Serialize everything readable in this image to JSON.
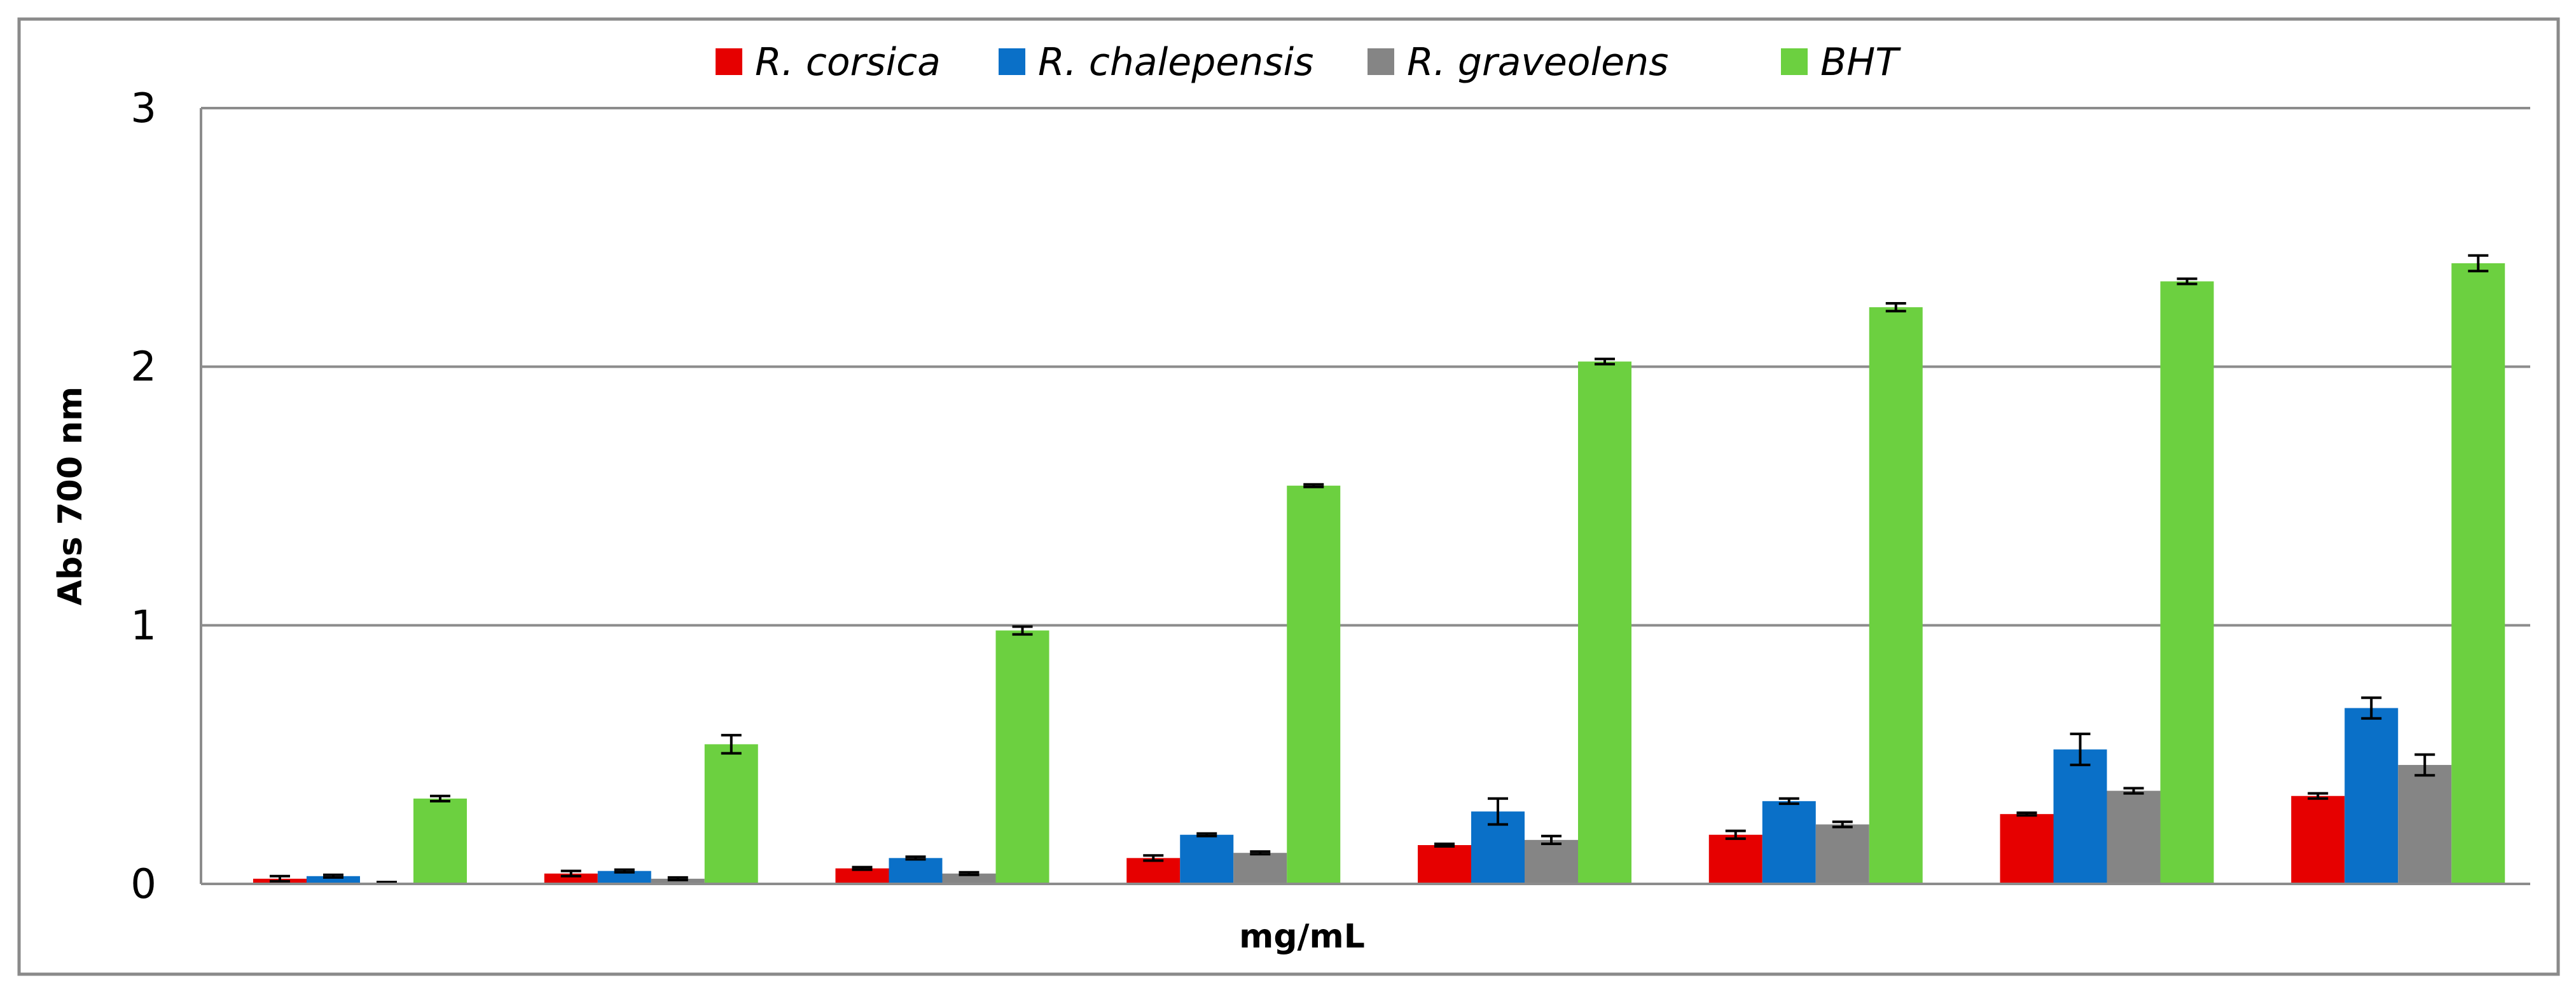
{
  "chart_data": {
    "type": "bar",
    "title": "",
    "xlabel": "mg/mL",
    "ylabel": "Abs 700 nm",
    "ylim": [
      0,
      3
    ],
    "yticks": [
      "0",
      "1",
      "2",
      "3"
    ],
    "grid": true,
    "legend_position": "top",
    "categories": [
      "",
      "",
      "",
      "",
      "",
      "",
      "",
      ""
    ],
    "series": [
      {
        "name": "R. corsica",
        "color": "#E60000",
        "values": [
          0.02,
          0.04,
          0.06,
          0.1,
          0.15,
          0.19,
          0.27,
          0.34
        ],
        "errors": [
          0.01,
          0.01,
          0.005,
          0.01,
          0.005,
          0.015,
          0.005,
          0.01
        ]
      },
      {
        "name": "R. chalepensis",
        "color": "#0A70C8",
        "values": [
          0.03,
          0.05,
          0.1,
          0.19,
          0.28,
          0.32,
          0.52,
          0.68
        ],
        "errors": [
          0.005,
          0.005,
          0.005,
          0.005,
          0.05,
          0.01,
          0.06,
          0.04
        ]
      },
      {
        "name": "R. graveolens",
        "color": "#858585",
        "values": [
          0.005,
          0.02,
          0.04,
          0.12,
          0.17,
          0.23,
          0.36,
          0.46
        ],
        "errors": [
          0.002,
          0.005,
          0.005,
          0.005,
          0.015,
          0.01,
          0.01,
          0.04
        ]
      },
      {
        "name": "BHT",
        "color": "#6CD040",
        "values": [
          0.33,
          0.54,
          0.98,
          1.54,
          2.02,
          2.23,
          2.33,
          2.4
        ],
        "errors": [
          0.01,
          0.035,
          0.015,
          0.005,
          0.01,
          0.015,
          0.01,
          0.03
        ]
      }
    ]
  }
}
